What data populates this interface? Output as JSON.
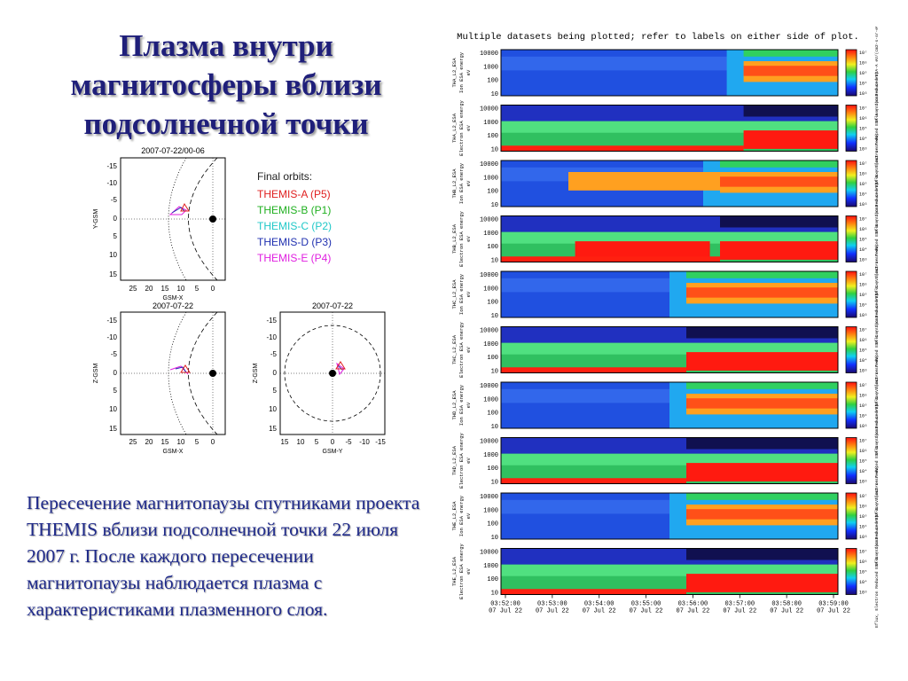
{
  "title": {
    "lines": [
      "Плазма внутри",
      "магнитосферы вблизи",
      "подсолнечной точки"
    ]
  },
  "description": "Пересечение магнитопаузы спутниками проекта THEMIS вблизи подсолнечной точки 22 июля 2007 г. После каждого пересечении магнитопаузы наблюдается плазма с характеристиками плазменного слоя.",
  "orbits": {
    "panel1": {
      "title": "2007-07-22/00-06",
      "xlabel": "GSM-X",
      "ylabel": "Y-GSM",
      "xticks": [
        "25",
        "20",
        "15",
        "10",
        "5",
        "0"
      ],
      "yticks": [
        "-15",
        "-10",
        "-5",
        "0",
        "5",
        "10",
        "15"
      ]
    },
    "panel2": {
      "title": "2007-07-22",
      "xlabel": "GSM-X",
      "ylabel": "Z-GSM",
      "xticks": [
        "25",
        "20",
        "15",
        "10",
        "5",
        "0"
      ],
      "yticks": [
        "-15",
        "-10",
        "-5",
        "0",
        "5",
        "10",
        "15"
      ]
    },
    "panel3": {
      "title": "2007-07-22",
      "xlabel": "GSM-Y",
      "ylabel": "Z-GSM",
      "xticks": [
        "15",
        "10",
        "5",
        "0",
        "-5",
        "-10",
        "-15"
      ],
      "yticks": [
        "-15",
        "-10",
        "-5",
        "0",
        "5",
        "10",
        "15"
      ]
    },
    "legend": {
      "heading": "Final orbits:",
      "items": [
        {
          "label": "THEMIS-A (P5)",
          "color": "#e02020"
        },
        {
          "label": "THEMIS-B (P1)",
          "color": "#20b020"
        },
        {
          "label": "THEMIS-C (P2)",
          "color": "#20c8c8"
        },
        {
          "label": "THEMIS-D (P3)",
          "color": "#2030b0"
        },
        {
          "label": "THEMIS-E (P4)",
          "color": "#e020e0"
        }
      ]
    }
  },
  "spectrogram": {
    "header": "Multiple datasets being plotted; refer to labels on either side of plot.",
    "yticks": [
      "10000",
      "1000",
      "100",
      "10"
    ],
    "panels": [
      {
        "left_label": [
          "THA_L2_ESA",
          "Ion ESA energy",
          "eV"
        ],
        "right_label": "Eflux, Ion Reduced ESA-A eV/(cm2-s-sr-eV)"
      },
      {
        "left_label": [
          "THA_L2_ESA",
          "Electron ESA energy",
          "eV"
        ],
        "right_label": "Eflux, Electron Reduced ESA-A eV/(cm2-s-sr-eV)"
      },
      {
        "left_label": [
          "THB_L2_ESA",
          "Ion ESA energy",
          "eV"
        ],
        "right_label": "Eflux, Ion Reduced ESA-B eV/(cm2-s-sr-eV)"
      },
      {
        "left_label": [
          "THB_L2_ESA",
          "Electron ESA energy",
          "eV"
        ],
        "right_label": "Eflux, Electron Reduced ESA-B eV/(cm2-s-sr-eV)"
      },
      {
        "left_label": [
          "THC_L2_ESA",
          "Ion ESA energy",
          "eV"
        ],
        "right_label": "Eflux, Ion Reduced ESA-C eV/(cm2-s-sr-eV)"
      },
      {
        "left_label": [
          "THC_L2_ESA",
          "Electron ESA energy",
          "eV"
        ],
        "right_label": "Eflux, Electron Reduced ESA-C eV/(cm2-s-sr-eV)"
      },
      {
        "left_label": [
          "THD_L2_ESA",
          "Ion ESA energy",
          "eV"
        ],
        "right_label": "Eflux, Ion Reduced ESA-D eV/(cm2-s-sr-eV)"
      },
      {
        "left_label": [
          "THD_L2_ESA",
          "Electron ESA energy",
          "eV"
        ],
        "right_label": "Eflux, Electron Reduced ESA-D eV/(cm2-s-sr-eV)"
      },
      {
        "left_label": [
          "THE_L2_ESA",
          "Ion ESA energy",
          "eV"
        ],
        "right_label": "Eflux, Ion Reduced ESA-E eV/(cm2-s-sr-eV)"
      },
      {
        "left_label": [
          "THE_L2_ESA",
          "Electron ESA energy",
          "eV"
        ],
        "right_label": "Eflux, Electron Reduced ESA-E eV/(cm2-s-sr-eV)"
      }
    ],
    "cbar_ticks": [
      "10⁷",
      "10⁶",
      "10⁵",
      "10⁴",
      "10³"
    ],
    "time_ticks": [
      {
        "time": "03:52:00",
        "date": "07 Jul 22"
      },
      {
        "time": "03:53:00",
        "date": "07 Jul 22"
      },
      {
        "time": "03:54:00",
        "date": "07 Jul 22"
      },
      {
        "time": "03:55:00",
        "date": "07 Jul 22"
      },
      {
        "time": "03:56:00",
        "date": "07 Jul 22"
      },
      {
        "time": "03:57:00",
        "date": "07 Jul 22"
      },
      {
        "time": "03:58:00",
        "date": "07 Jul 22"
      },
      {
        "time": "03:59:00",
        "date": "07 Jul 22"
      }
    ]
  }
}
